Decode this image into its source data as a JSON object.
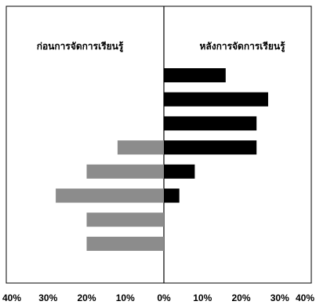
{
  "chart_data": {
    "type": "bar",
    "orientation": "horizontal-diverging",
    "group_labels": {
      "left": "ก่อนการจัดการเรียนรู้",
      "right": "หลังการจัดการเรียนรู้"
    },
    "xlim": [
      -40,
      40
    ],
    "x_tick_labels": [
      "40%",
      "30%",
      "20%",
      "10%",
      "0%",
      "10%",
      "20%",
      "30%",
      "40%"
    ],
    "series": [
      {
        "group": "left",
        "fill": "#8c8c8c",
        "values": [
          0,
          0,
          0,
          12,
          20,
          28,
          20,
          20
        ]
      },
      {
        "group": "right",
        "fill": "#000000",
        "values": [
          16,
          27,
          24,
          24,
          8,
          4,
          0,
          0
        ]
      }
    ],
    "grid": false
  }
}
